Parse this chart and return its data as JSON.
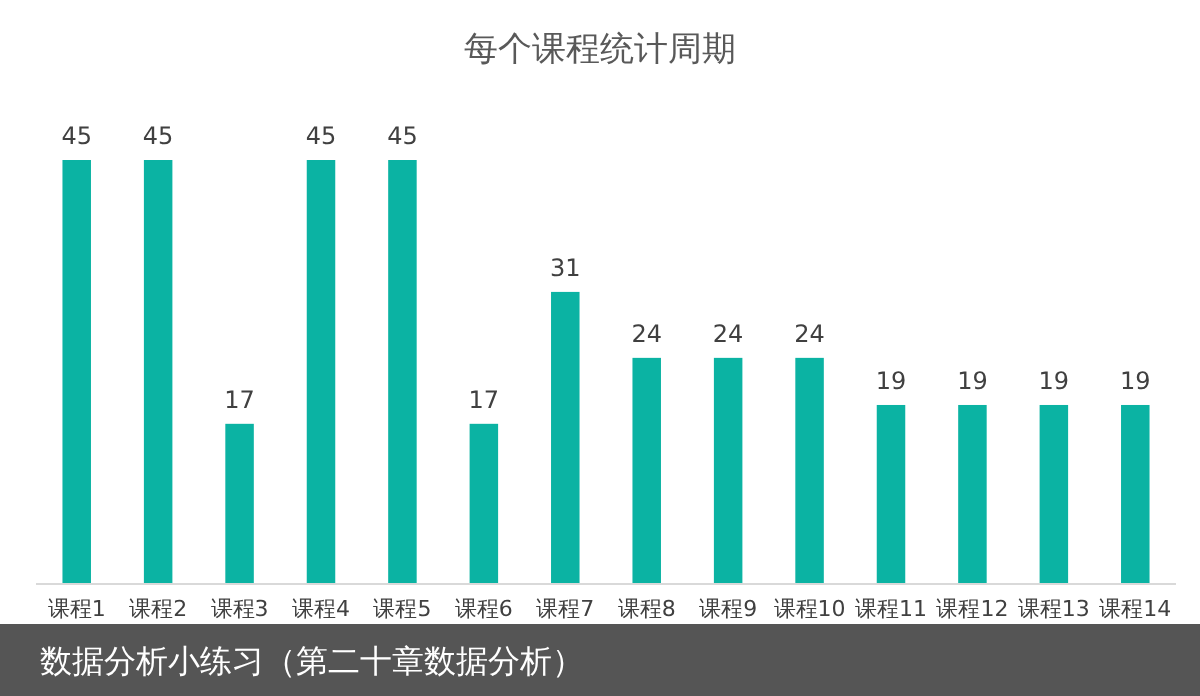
{
  "chart_data": {
    "type": "bar",
    "title": "每个课程统计周期",
    "categories": [
      "课程1",
      "课程2",
      "课程3",
      "课程4",
      "课程5",
      "课程6",
      "课程7",
      "课程8",
      "课程9",
      "课程10",
      "课程11",
      "课程12",
      "课程13",
      "课程14"
    ],
    "values": [
      45,
      45,
      17,
      45,
      45,
      17,
      31,
      24,
      24,
      24,
      19,
      19,
      19,
      19
    ],
    "color": "#0bb3a3",
    "data_labels": true,
    "annotations": [
      "数据分析小练习（第二十章数据分析）"
    ]
  }
}
